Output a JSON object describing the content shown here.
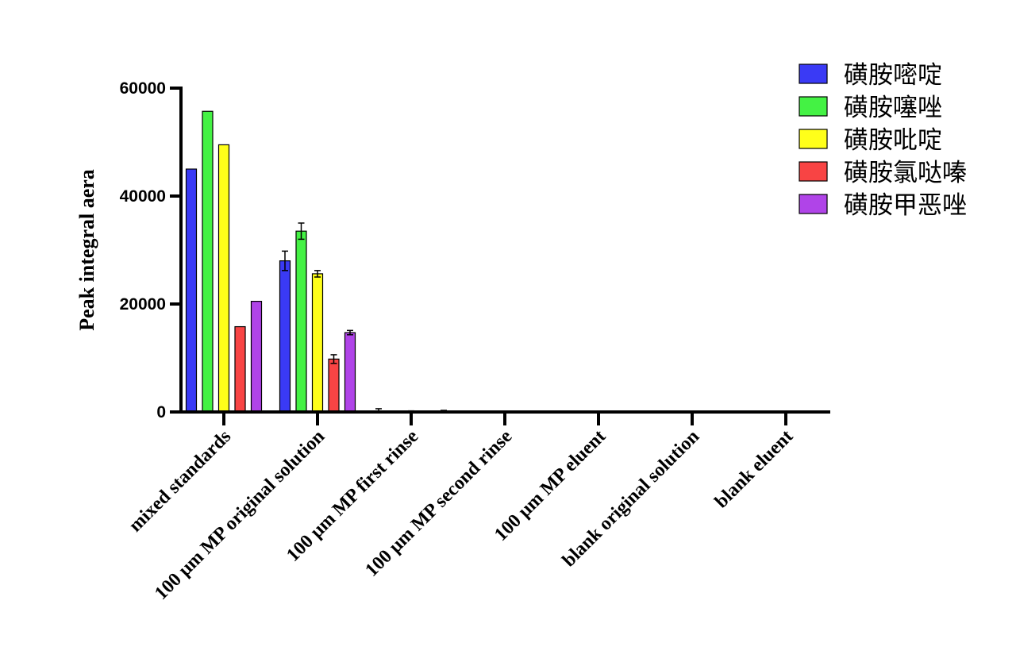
{
  "chart_data": {
    "type": "bar",
    "title": "",
    "xlabel": "",
    "ylabel": "Peak integral aera",
    "ylim": [
      0,
      60000
    ],
    "yticks": [
      0,
      20000,
      40000,
      60000
    ],
    "legend_position": "top-right",
    "categories": [
      "mixed standards",
      "100 μm MP original solution",
      "100 μm MP first rinse",
      "100 μm MP second rinse",
      "100 μm MP eluent",
      "blank original solution",
      "blank eluent"
    ],
    "series": [
      {
        "name": "磺胺嘧啶",
        "color": "#3a3af5",
        "values": [
          45000,
          28000,
          0,
          0,
          0,
          0,
          0
        ],
        "errors": [
          0,
          1800,
          600,
          0,
          0,
          0,
          0
        ]
      },
      {
        "name": "磺胺噻唑",
        "color": "#44f244",
        "values": [
          55700,
          33500,
          0,
          0,
          0,
          0,
          0
        ],
        "errors": [
          0,
          1500,
          0,
          0,
          0,
          0,
          0
        ]
      },
      {
        "name": "磺胺吡啶",
        "color": "#ffff1a",
        "values": [
          49500,
          25600,
          0,
          0,
          0,
          0,
          0
        ],
        "errors": [
          0,
          600,
          200,
          0,
          0,
          0,
          0
        ]
      },
      {
        "name": "磺胺氯哒嗪",
        "color": "#f84444",
        "values": [
          15800,
          9800,
          0,
          0,
          0,
          0,
          0
        ],
        "errors": [
          0,
          800,
          0,
          0,
          0,
          0,
          0
        ]
      },
      {
        "name": "磺胺甲恶唑",
        "color": "#b044e8",
        "values": [
          20500,
          14700,
          0,
          0,
          0,
          0,
          0
        ],
        "errors": [
          0,
          400,
          300,
          0,
          0,
          0,
          0
        ]
      }
    ]
  }
}
